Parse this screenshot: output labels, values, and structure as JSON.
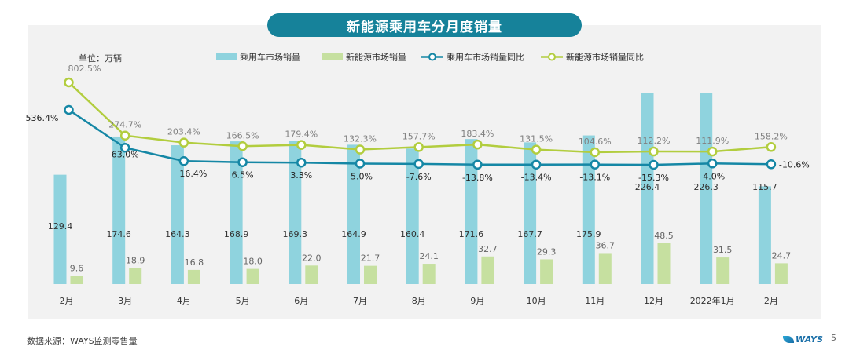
{
  "title": "新能源乘用车分月度销量",
  "unit_label": "单位：万辆",
  "source": "数据来源：WAYS监测零售量",
  "logo_text": "WAYS",
  "page_number": "5",
  "colors": {
    "bar_passenger": "#8fd3de",
    "bar_nev": "#c6e0a0",
    "line_passenger": "#1587a5",
    "line_nev": "#b2cd3e",
    "background": "#f2f2f2"
  },
  "chart_data": {
    "type": "bar+line",
    "categories": [
      "2月",
      "3月",
      "4月",
      "5月",
      "6月",
      "7月",
      "8月",
      "9月",
      "10月",
      "11月",
      "12月",
      "2022年1月",
      "2月"
    ],
    "series": [
      {
        "name": "乘用车市场销量",
        "type": "bar",
        "values": [
          129.4,
          174.6,
          164.3,
          168.9,
          169.3,
          164.9,
          160.4,
          171.6,
          167.7,
          175.9,
          226.4,
          226.3,
          115.7
        ],
        "labels": [
          "129.4",
          "174.6",
          "164.3",
          "168.9",
          "169.3",
          "164.9",
          "160.4",
          "171.6",
          "167.7",
          "175.9",
          "226.4",
          "226.3",
          "115.7"
        ]
      },
      {
        "name": "新能源市场销量",
        "type": "bar",
        "values": [
          9.6,
          18.9,
          16.8,
          18.0,
          22.0,
          21.7,
          24.1,
          32.7,
          29.3,
          36.7,
          48.5,
          31.5,
          24.7
        ],
        "labels": [
          "9.6",
          "18.9",
          "16.8",
          "18.0",
          "22.0",
          "21.7",
          "24.1",
          "32.7",
          "29.3",
          "36.7",
          "48.5",
          "31.5",
          "24.7"
        ]
      },
      {
        "name": "乘用车市场销量同比",
        "type": "line",
        "values": [
          536.4,
          63.0,
          16.4,
          6.5,
          3.3,
          -5.0,
          -7.6,
          -13.8,
          -13.4,
          -13.1,
          -15.3,
          -4.0,
          -10.6
        ],
        "labels": [
          "536.4%",
          "63.0%",
          "16.4%",
          "6.5%",
          "3.3%",
          "-5.0%",
          "-7.6%",
          "-13.8%",
          "-13.4%",
          "-13.1%",
          "-15.3%",
          "-4.0%",
          "-10.6%"
        ]
      },
      {
        "name": "新能源市场销量同比",
        "type": "line",
        "values": [
          802.5,
          274.7,
          203.4,
          166.5,
          179.4,
          132.3,
          157.7,
          183.4,
          131.5,
          104.6,
          112.2,
          111.9,
          158.2
        ],
        "labels": [
          "802.5%",
          "274.7%",
          "203.4%",
          "166.5%",
          "179.4%",
          "132.3%",
          "157.7%",
          "183.4%",
          "131.5%",
          "104.6%",
          "112.2%",
          "111.9%",
          "158.2%"
        ]
      }
    ],
    "legend_position": "top",
    "grid": false
  }
}
